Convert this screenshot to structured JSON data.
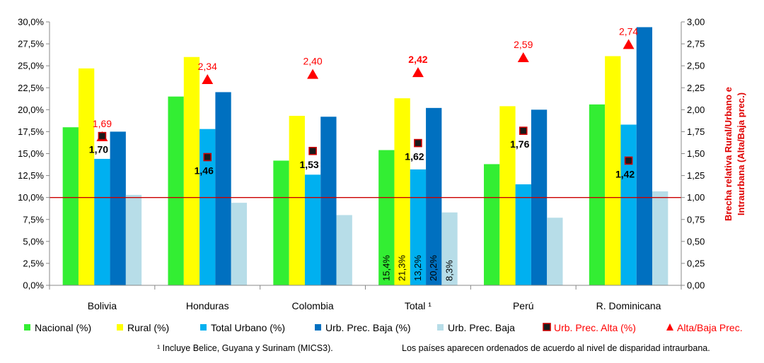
{
  "chart_data": {
    "type": "bar",
    "categories": [
      "Bolivia",
      "Honduras",
      "Colombia",
      "Total ¹",
      "Perú",
      "R. Dominicana"
    ],
    "series": [
      {
        "name": "Nacional (%)",
        "color": "#33ee33",
        "values": [
          18.0,
          21.5,
          14.2,
          15.4,
          13.8,
          20.6
        ]
      },
      {
        "name": "Rural (%)",
        "color": "#ffff00",
        "values": [
          24.7,
          26.0,
          19.3,
          21.3,
          20.4,
          26.1
        ]
      },
      {
        "name": "Total Urbano (%)",
        "color": "#00b0f0",
        "values": [
          14.4,
          17.8,
          12.6,
          13.2,
          11.5,
          18.3
        ]
      },
      {
        "name": "Urb. Prec. Baja (%)",
        "color": "#0070c0",
        "values": [
          17.5,
          22.0,
          19.2,
          20.2,
          20.0,
          29.4
        ]
      },
      {
        "name": "Urb. Prec. Baja",
        "color": "#b7dde8",
        "values": [
          10.3,
          9.4,
          8.0,
          8.3,
          7.7,
          10.7
        ]
      }
    ],
    "ratio_series": [
      {
        "name": "Urb. Prec. Alta (%)",
        "marker": "square",
        "values": [
          1.7,
          1.46,
          1.53,
          1.62,
          1.76,
          1.42
        ],
        "labels": [
          "1,70",
          "1,46",
          "1,53",
          "1,62",
          "1,76",
          "1,42"
        ]
      },
      {
        "name": "Alta/Baja Prec.",
        "marker": "triangle",
        "color": "#ff0000",
        "values": [
          1.69,
          2.34,
          2.4,
          2.42,
          2.59,
          2.74
        ],
        "labels": [
          "1,69",
          "2,34",
          "2,40",
          "2,42",
          "2,59",
          "2,74"
        ]
      }
    ],
    "total_bar_labels": [
      "15,4%",
      "21,3%",
      "13,2%",
      "20,2%",
      "8,3%"
    ],
    "y_left": {
      "min": 0,
      "max": 30,
      "step": 2.5,
      "tick_labels": [
        "0,0%",
        "2,5%",
        "5,0%",
        "7,5%",
        "10,0%",
        "12,5%",
        "15,0%",
        "17,5%",
        "20,0%",
        "22,5%",
        "25,0%",
        "27,5%",
        "30,0%"
      ]
    },
    "y_right": {
      "min": 0,
      "max": 3,
      "step": 0.25,
      "tick_labels": [
        "0,00",
        "0,25",
        "0,50",
        "0,75",
        "1,00",
        "1,25",
        "1,50",
        "1,75",
        "2,00",
        "2,25",
        "2,50",
        "2,75",
        "3,00"
      ],
      "label_line1": "Brecha relativa Rural/Urbano e",
      "label_line2": "Intraurbana (Alta/Baja prec.)"
    },
    "reference_line": {
      "value": 1.0,
      "color": "#cc0000"
    },
    "grid": false,
    "legend_position": "bottom"
  },
  "footnotes": {
    "left": "¹ Incluye Belice, Guyana y Surinam (MICS3).",
    "right": "Los países aparecen ordenados de acuerdo al nivel de disparidad intraurbana."
  }
}
